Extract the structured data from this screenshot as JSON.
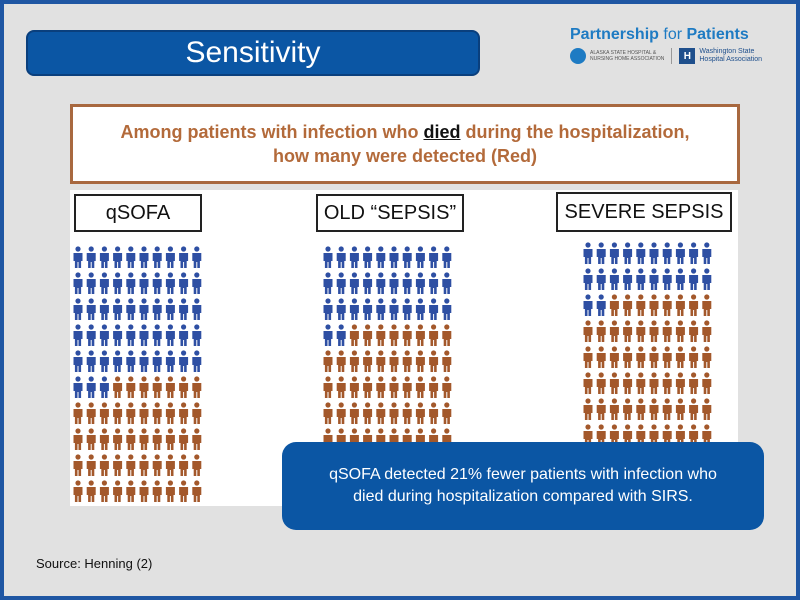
{
  "slide": {
    "title": "Sensitivity",
    "logo": {
      "title_bold": "Partnership",
      "title_for": " for ",
      "title_end": "Patients",
      "alaska_org_line1": "ALASKA STATE HOSPITAL &",
      "alaska_org_line2": "NURSING HOME ASSOCIATION",
      "wa_org_line1": "Washington State",
      "wa_org_line2": "Hospital Association",
      "wa_mark": "H"
    },
    "question": {
      "line1_before": "Among patients with infection who ",
      "line1_emph": "died",
      "line1_after": " during the hospitalization,",
      "line2": "how many were detected (Red)"
    },
    "panels": [
      {
        "label": "qSOFA",
        "total": 100,
        "detected": 47
      },
      {
        "label": "OLD “SEPSIS”",
        "total": 100,
        "detected": 68
      },
      {
        "label": "SEVERE SEPSIS",
        "total": 100,
        "detected": 78
      }
    ],
    "colors": {
      "detected": "#a3582b",
      "missed": "#2e4fa3"
    },
    "callout": {
      "line1": "qSOFA detected 21% fewer patients with infection who",
      "line2": "died during hospitalization compared with SIRS."
    },
    "source": "Source: Henning (2)"
  }
}
